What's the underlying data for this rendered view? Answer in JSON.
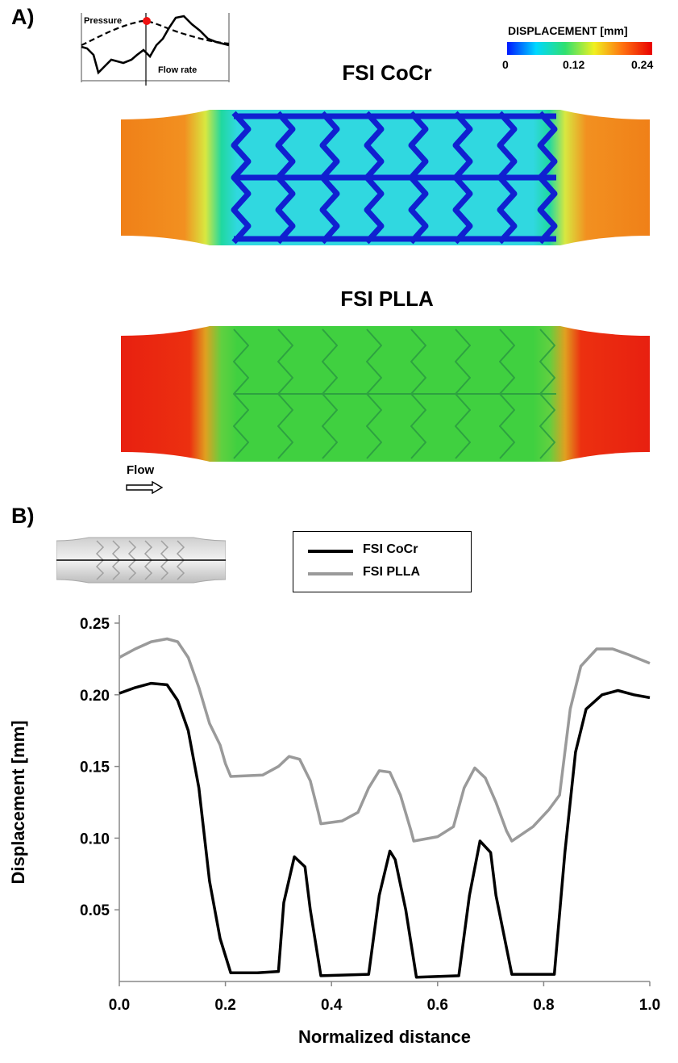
{
  "panel_a": {
    "label": "A)",
    "inset": {
      "pressure_label": "Pressure",
      "flow_label": "Flow rate"
    },
    "colorbar": {
      "title": "DISPLACEMENT [mm]",
      "ticks": [
        "0",
        "0.12",
        "0.24"
      ],
      "colors": [
        "#0018ff",
        "#00d8ff",
        "#30e070",
        "#f0f020",
        "#ff7010",
        "#e80000"
      ]
    },
    "top_title": "FSI CoCr",
    "bottom_title": "FSI PLLA",
    "flow_label": "Flow"
  },
  "panel_b": {
    "label": "B)",
    "legend": [
      "FSI CoCr",
      "FSI PLLA"
    ]
  },
  "chart_data": {
    "type": "line",
    "xlabel": "Normalized distance",
    "ylabel": "Displacement [mm]",
    "xlim": [
      0,
      1
    ],
    "ylim": [
      0,
      0.25
    ],
    "xticks": [
      "0.0",
      "0.2",
      "0.4",
      "0.6",
      "0.8",
      "1.0"
    ],
    "yticks": [
      "0.05",
      "0.10",
      "0.15",
      "0.20",
      "0.25"
    ],
    "legend_position": "top-center",
    "series": [
      {
        "name": "FSI CoCr",
        "color": "#000000",
        "x": [
          0.0,
          0.03,
          0.06,
          0.09,
          0.11,
          0.13,
          0.15,
          0.17,
          0.19,
          0.21,
          0.26,
          0.3,
          0.31,
          0.33,
          0.35,
          0.36,
          0.38,
          0.47,
          0.49,
          0.51,
          0.52,
          0.54,
          0.56,
          0.64,
          0.66,
          0.68,
          0.7,
          0.71,
          0.74,
          0.82,
          0.84,
          0.86,
          0.88,
          0.91,
          0.94,
          0.97,
          1.0
        ],
        "y": [
          0.201,
          0.205,
          0.208,
          0.207,
          0.196,
          0.175,
          0.135,
          0.07,
          0.03,
          0.006,
          0.006,
          0.007,
          0.055,
          0.087,
          0.08,
          0.05,
          0.004,
          0.005,
          0.06,
          0.091,
          0.085,
          0.05,
          0.003,
          0.004,
          0.06,
          0.098,
          0.09,
          0.06,
          0.005,
          0.005,
          0.09,
          0.16,
          0.19,
          0.2,
          0.203,
          0.2,
          0.198
        ]
      },
      {
        "name": "FSI PLLA",
        "color": "#9a9a9a",
        "x": [
          0.0,
          0.03,
          0.06,
          0.09,
          0.11,
          0.13,
          0.15,
          0.17,
          0.19,
          0.2,
          0.21,
          0.27,
          0.3,
          0.32,
          0.34,
          0.36,
          0.375,
          0.38,
          0.42,
          0.45,
          0.47,
          0.49,
          0.51,
          0.53,
          0.55,
          0.555,
          0.6,
          0.63,
          0.65,
          0.67,
          0.69,
          0.71,
          0.73,
          0.74,
          0.78,
          0.81,
          0.83,
          0.85,
          0.87,
          0.9,
          0.93,
          0.96,
          1.0
        ],
        "y": [
          0.226,
          0.232,
          0.237,
          0.239,
          0.237,
          0.226,
          0.205,
          0.18,
          0.165,
          0.152,
          0.143,
          0.144,
          0.15,
          0.157,
          0.155,
          0.14,
          0.118,
          0.11,
          0.112,
          0.118,
          0.135,
          0.147,
          0.146,
          0.13,
          0.105,
          0.098,
          0.101,
          0.108,
          0.135,
          0.149,
          0.142,
          0.125,
          0.105,
          0.098,
          0.108,
          0.12,
          0.13,
          0.19,
          0.22,
          0.232,
          0.232,
          0.228,
          0.222
        ]
      }
    ]
  }
}
